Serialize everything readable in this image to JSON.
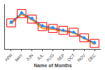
{
  "chart_data": {
    "type": "line",
    "xlabel": "Name of Months",
    "categories": [
      "APR",
      "MAY",
      "JUN",
      "JUL",
      "AUG",
      "SEP",
      "OCT",
      "NOV",
      "DEC"
    ],
    "series": [
      {
        "color": "#888888",
        "marker": "triangle-up",
        "values": [
          32,
          37,
          34,
          30,
          29,
          28,
          27,
          24,
          21
        ]
      },
      {
        "color": "#FF8C00",
        "marker": "none",
        "values": [
          31.5,
          36.5,
          33.5,
          29,
          28.5,
          27.5,
          26.5,
          23.5,
          20.5
        ]
      },
      {
        "color": "#1E90FF",
        "marker": "diamond",
        "values": [
          32.5,
          37.5,
          34.5,
          30.5,
          29.5,
          28,
          27,
          24,
          21.5
        ]
      }
    ],
    "color": "#FF0000",
    "ylim": [
      18,
      42
    ],
    "tick_labels": "x",
    "grid": false
  }
}
